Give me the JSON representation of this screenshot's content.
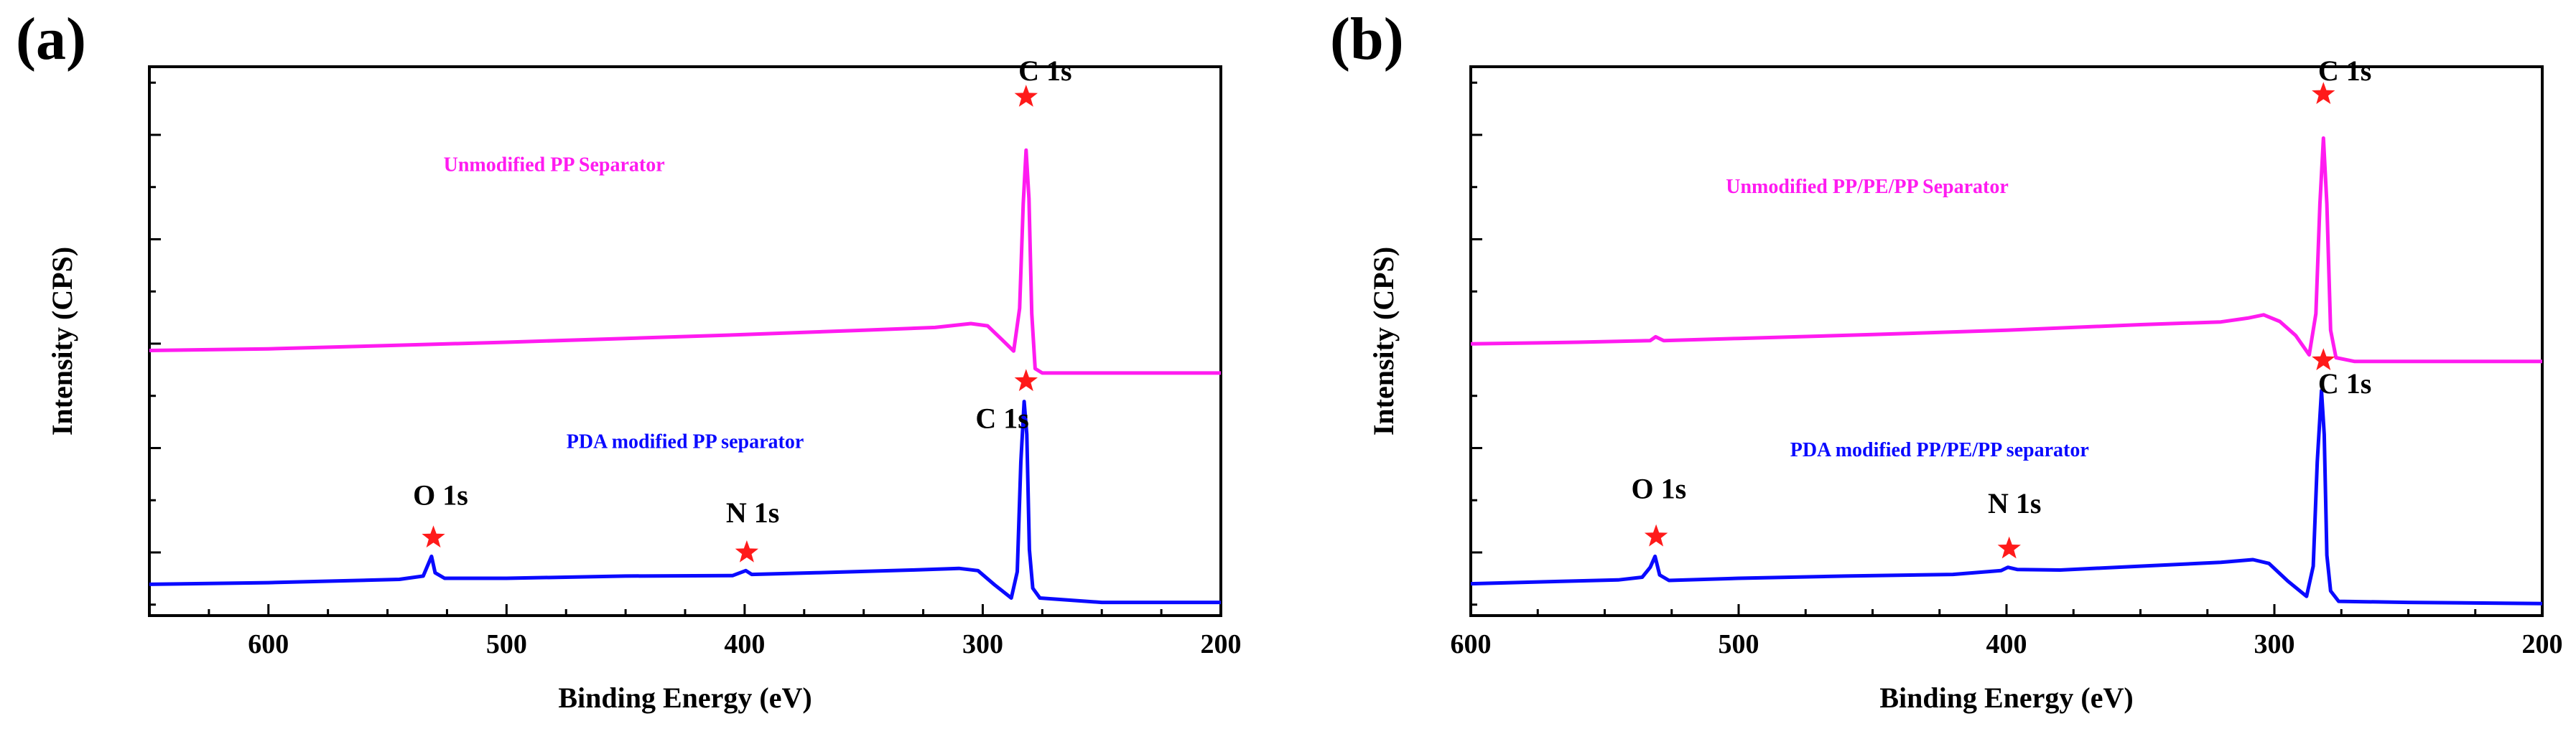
{
  "chart_data": [
    {
      "panel": "(a)",
      "type": "line",
      "xlabel": "Binding Energy (eV)",
      "ylabel": "Intensity (CPS)",
      "xlim": [
        650,
        200
      ],
      "ylim": [
        0,
        100
      ],
      "xticks": [
        600,
        500,
        400,
        300,
        200
      ],
      "ytick_count": 5,
      "series": [
        {
          "name": "Unmodified PP Separator",
          "color": "#ff1bf0",
          "label_at": [
            480,
            81
          ],
          "points": [
            [
              650,
              48.3
            ],
            [
              600,
              48.6
            ],
            [
              550,
              49.2
            ],
            [
              500,
              49.8
            ],
            [
              450,
              50.5
            ],
            [
              400,
              51.2
            ],
            [
              350,
              52
            ],
            [
              320,
              52.5
            ],
            [
              305,
              53.2
            ],
            [
              298,
              52.8
            ],
            [
              292,
              50.3
            ],
            [
              287,
              48.2
            ],
            [
              284.5,
              56
            ],
            [
              283,
              75
            ],
            [
              281.8,
              84.8
            ],
            [
              280.6,
              76
            ],
            [
              279.4,
              55
            ],
            [
              278,
              45
            ],
            [
              275,
              44.2
            ],
            [
              250,
              44.2
            ],
            [
              200,
              44.2
            ]
          ]
        },
        {
          "name": "PDA modified PP separator",
          "color": "#0a0aff",
          "label_at": [
            425,
            30.5
          ],
          "points": [
            [
              650,
              5.7
            ],
            [
              600,
              6
            ],
            [
              545,
              6.6
            ],
            [
              535,
              7.2
            ],
            [
              531.5,
              10.8
            ],
            [
              530,
              7.8
            ],
            [
              526,
              6.8
            ],
            [
              500,
              6.8
            ],
            [
              450,
              7.2
            ],
            [
              405,
              7.3
            ],
            [
              399.5,
              8.2
            ],
            [
              397,
              7.5
            ],
            [
              370,
              7.8
            ],
            [
              330,
              8.3
            ],
            [
              310,
              8.6
            ],
            [
              302,
              8.2
            ],
            [
              295,
              5.6
            ],
            [
              288,
              3.2
            ],
            [
              285.5,
              8
            ],
            [
              284,
              28
            ],
            [
              282.6,
              39
            ],
            [
              281.5,
              33
            ],
            [
              280.4,
              12
            ],
            [
              279,
              5
            ],
            [
              276,
              3.2
            ],
            [
              250,
              2.4
            ],
            [
              200,
              2.4
            ]
          ]
        }
      ],
      "peaks": [
        {
          "label": "C 1s",
          "x": 281.8,
          "y": 94.5,
          "label_x_offset": 8,
          "label_y_offset": 3
        },
        {
          "label": "C 1s",
          "x": 281.8,
          "y": 42.7,
          "label_x_offset": -10,
          "label_y_offset": -8.5
        },
        {
          "label": "O 1s",
          "x": 530.7,
          "y": 14.2,
          "label_x_offset": 3,
          "label_y_offset": 6
        },
        {
          "label": "N 1s",
          "x": 399.1,
          "y": 11.5,
          "label_x_offset": 2.5,
          "label_y_offset": 5.5
        }
      ],
      "star_color": "#ff1a1a"
    },
    {
      "panel": "(b)",
      "type": "line",
      "xlabel": "Binding Energy (eV)",
      "ylabel": "Intensity (CPS)",
      "xlim": [
        600,
        200
      ],
      "ylim": [
        0,
        100
      ],
      "xticks": [
        600,
        500,
        400,
        300,
        200
      ],
      "ytick_count": 5,
      "series": [
        {
          "name": "Unmodified PP/PE/PP Separator",
          "color": "#ff1bf0",
          "label_at": [
            452,
            77
          ],
          "points": [
            [
              600,
              49.5
            ],
            [
              560,
              49.8
            ],
            [
              533,
              50.1
            ],
            [
              531,
              50.8
            ],
            [
              528,
              50.1
            ],
            [
              500,
              50.5
            ],
            [
              450,
              51.2
            ],
            [
              400,
              52
            ],
            [
              350,
              53
            ],
            [
              320,
              53.5
            ],
            [
              310,
              54.2
            ],
            [
              304,
              54.8
            ],
            [
              298,
              53.6
            ],
            [
              292,
              51
            ],
            [
              287,
              47.5
            ],
            [
              284.5,
              55
            ],
            [
              283,
              75
            ],
            [
              281.7,
              87
            ],
            [
              280.4,
              75
            ],
            [
              279,
              52
            ],
            [
              277,
              47
            ],
            [
              270,
              46.3
            ],
            [
              200,
              46.3
            ]
          ]
        },
        {
          "name": "PDA modified PP/PE/PP separator",
          "color": "#0a0aff",
          "label_at": [
            425,
            29
          ],
          "points": [
            [
              600,
              5.8
            ],
            [
              570,
              6.2
            ],
            [
              545,
              6.5
            ],
            [
              536,
              7
            ],
            [
              533,
              8.8
            ],
            [
              531.2,
              10.8
            ],
            [
              529.5,
              7.4
            ],
            [
              526,
              6.4
            ],
            [
              500,
              6.8
            ],
            [
              460,
              7.2
            ],
            [
              420,
              7.5
            ],
            [
              402,
              8.2
            ],
            [
              399.5,
              8.8
            ],
            [
              396,
              8.4
            ],
            [
              380,
              8.3
            ],
            [
              350,
              9
            ],
            [
              320,
              9.7
            ],
            [
              308,
              10.2
            ],
            [
              302,
              9.5
            ],
            [
              295,
              6.3
            ],
            [
              288,
              3.5
            ],
            [
              285.5,
              9
            ],
            [
              284,
              28
            ],
            [
              282.4,
              41
            ],
            [
              281.4,
              33
            ],
            [
              280.4,
              11
            ],
            [
              279,
              4.5
            ],
            [
              276,
              2.6
            ],
            [
              250,
              2.4
            ],
            [
              200,
              2.2
            ]
          ]
        }
      ],
      "peaks": [
        {
          "label": "C 1s",
          "x": 281.7,
          "y": 95,
          "label_x_offset": 8,
          "label_y_offset": 2.5
        },
        {
          "label": "C 1s",
          "x": 281.7,
          "y": 46.5,
          "label_x_offset": 8,
          "label_y_offset": -6
        },
        {
          "label": "O 1s",
          "x": 530.8,
          "y": 14.4,
          "label_x_offset": 1,
          "label_y_offset": 7
        },
        {
          "label": "N 1s",
          "x": 399,
          "y": 12.2,
          "label_x_offset": 2,
          "label_y_offset": 6.5
        }
      ],
      "star_color": "#ff1a1a"
    }
  ]
}
